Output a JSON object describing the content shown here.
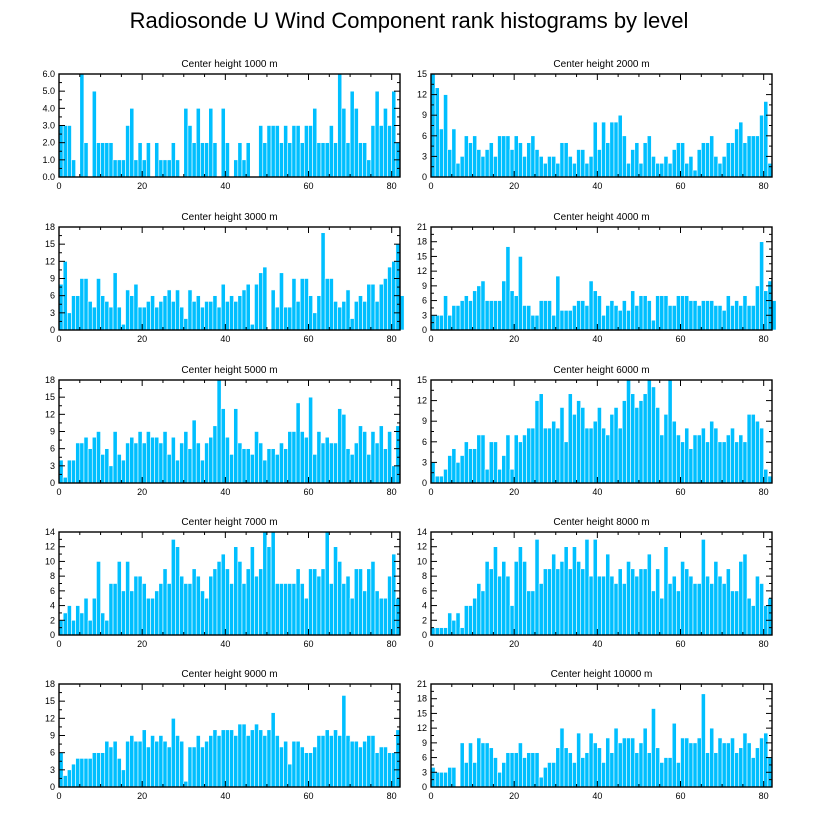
{
  "figure_title": "Radiosonde U Wind Component rank histograms by level",
  "bar_color": "#00BFFF",
  "chart_data": [
    {
      "type": "bar",
      "title": "Center height 1000 m",
      "xlim": [
        0,
        82
      ],
      "ylim": [
        0,
        6
      ],
      "xticks": [
        "0",
        "20",
        "40",
        "60",
        "80"
      ],
      "yticks": [
        "0.0",
        "1.0",
        "2.0",
        "3.0",
        "4.0",
        "5.0",
        "6.0"
      ],
      "values": [
        3,
        3,
        3,
        1,
        0,
        6,
        2,
        0,
        5,
        2,
        2,
        2,
        2,
        1,
        1,
        1,
        3,
        4,
        1,
        2,
        1,
        2,
        0,
        2,
        1,
        1,
        1,
        2,
        1,
        0,
        4,
        3,
        2,
        4,
        2,
        2,
        4,
        2,
        0,
        4,
        2,
        0,
        1,
        2,
        1,
        2,
        0,
        0,
        3,
        2,
        3,
        3,
        3,
        2,
        3,
        2,
        3,
        3,
        2,
        3,
        3,
        4,
        2,
        2,
        2,
        3,
        2,
        6,
        4,
        2,
        5,
        4,
        2,
        2,
        1,
        3,
        5,
        3,
        4,
        3,
        5,
        2
      ]
    },
    {
      "type": "bar",
      "title": "Center height 2000 m",
      "xlim": [
        0,
        82
      ],
      "ylim": [
        0,
        15
      ],
      "xticks": [
        "0",
        "20",
        "40",
        "60",
        "80"
      ],
      "yticks": [
        "0",
        "3",
        "6",
        "9",
        "12",
        "15"
      ],
      "values": [
        15,
        13,
        7,
        12,
        4,
        7,
        2,
        3,
        6,
        5,
        6,
        4,
        3,
        4,
        5,
        3,
        6,
        6,
        6,
        4,
        6,
        5,
        3,
        5,
        6,
        4,
        3,
        2,
        3,
        3,
        2,
        5,
        5,
        3,
        2,
        4,
        4,
        2,
        3,
        8,
        4,
        8,
        5,
        8,
        8,
        9,
        6,
        2,
        4,
        5,
        2,
        5,
        6,
        3,
        2,
        2,
        3,
        2,
        4,
        5,
        5,
        2,
        3,
        1,
        4,
        5,
        5,
        6,
        3,
        2,
        3,
        5,
        5,
        7,
        8,
        5,
        6,
        6,
        6,
        9,
        11,
        2
      ]
    },
    {
      "type": "bar",
      "title": "Center height 3000 m",
      "xlim": [
        0,
        82
      ],
      "ylim": [
        0,
        18
      ],
      "xticks": [
        "0",
        "20",
        "40",
        "60",
        "80"
      ],
      "yticks": [
        "0",
        "3",
        "6",
        "9",
        "12",
        "15",
        "18"
      ],
      "values": [
        8,
        12,
        3,
        6,
        6,
        9,
        9,
        5,
        4,
        9,
        6,
        5,
        4,
        10,
        4,
        1,
        7,
        6,
        8,
        4,
        4,
        5,
        6,
        4,
        5,
        6,
        7,
        5,
        7,
        4,
        2,
        7,
        5,
        6,
        4,
        5,
        5,
        6,
        4,
        8,
        5,
        6,
        5,
        6,
        7,
        8,
        1,
        8,
        10,
        11,
        0,
        7,
        4,
        10,
        4,
        4,
        9,
        5,
        9,
        9,
        6,
        3,
        6,
        17,
        9,
        9,
        5,
        4,
        5,
        7,
        2,
        5,
        6,
        5,
        8,
        8,
        5,
        8,
        9,
        11,
        12,
        15,
        6
      ]
    },
    {
      "type": "bar",
      "title": "Center height 4000 m",
      "xlim": [
        0,
        82
      ],
      "ylim": [
        0,
        21
      ],
      "xticks": [
        "0",
        "20",
        "40",
        "60",
        "80"
      ],
      "yticks": [
        "0",
        "3",
        "6",
        "9",
        "12",
        "15",
        "18",
        "21"
      ],
      "values": [
        3,
        3,
        3,
        7,
        3,
        5,
        5,
        6,
        7,
        6,
        8,
        9,
        10,
        6,
        6,
        6,
        6,
        10,
        17,
        8,
        7,
        15,
        5,
        5,
        3,
        3,
        6,
        6,
        6,
        3,
        11,
        4,
        4,
        4,
        5,
        6,
        6,
        5,
        10,
        8,
        7,
        3,
        5,
        6,
        5,
        4,
        6,
        4,
        8,
        5,
        7,
        7,
        6,
        2,
        7,
        7,
        7,
        5,
        5,
        7,
        7,
        7,
        6,
        6,
        5,
        6,
        6,
        6,
        5,
        5,
        4,
        7,
        5,
        6,
        5,
        7,
        5,
        5,
        9,
        18,
        8,
        10,
        6
      ]
    },
    {
      "type": "bar",
      "title": "Center height 5000 m",
      "xlim": [
        0,
        82
      ],
      "ylim": [
        0,
        18
      ],
      "xticks": [
        "0",
        "20",
        "40",
        "60",
        "80"
      ],
      "yticks": [
        "0",
        "3",
        "6",
        "9",
        "12",
        "15",
        "18"
      ],
      "values": [
        4,
        1,
        4,
        4,
        7,
        7,
        8,
        6,
        8,
        9,
        5,
        6,
        3,
        9,
        5,
        4,
        7,
        8,
        7,
        9,
        7,
        9,
        8,
        8,
        7,
        9,
        5,
        8,
        4,
        7,
        9,
        6,
        11,
        7,
        4,
        7,
        8,
        10,
        18,
        13,
        8,
        5,
        13,
        7,
        6,
        6,
        5,
        9,
        7,
        4,
        6,
        6,
        5,
        7,
        6,
        9,
        9,
        14,
        9,
        8,
        15,
        5,
        9,
        7,
        8,
        7,
        7,
        13,
        12,
        6,
        5,
        7,
        10,
        9,
        5,
        9,
        7,
        10,
        6,
        9,
        3,
        10
      ]
    },
    {
      "type": "bar",
      "title": "Center height 6000 m",
      "xlim": [
        0,
        82
      ],
      "ylim": [
        0,
        15
      ],
      "xticks": [
        "0",
        "20",
        "40",
        "60",
        "80"
      ],
      "yticks": [
        "0",
        "3",
        "6",
        "9",
        "12",
        "15"
      ],
      "values": [
        3,
        1,
        1,
        2,
        4,
        5,
        3,
        4,
        6,
        5,
        5,
        7,
        7,
        2,
        6,
        6,
        2,
        4,
        7,
        2,
        7,
        6,
        7,
        8,
        8,
        12,
        13,
        8,
        8,
        9,
        8,
        11,
        6,
        13,
        10,
        12,
        11,
        8,
        8,
        9,
        11,
        8,
        7,
        10,
        11,
        8,
        12,
        15,
        13,
        11,
        12,
        13,
        15,
        14,
        11,
        7,
        10,
        15,
        9,
        7,
        6,
        8,
        5,
        7,
        7,
        8,
        6,
        9,
        8,
        6,
        6,
        7,
        8,
        6,
        7,
        6,
        10,
        10,
        9,
        8,
        2,
        1
      ]
    },
    {
      "type": "bar",
      "title": "Center height 7000 m",
      "xlim": [
        0,
        82
      ],
      "ylim": [
        0,
        14
      ],
      "xticks": [
        "0",
        "20",
        "40",
        "60",
        "80"
      ],
      "yticks": [
        "0",
        "2",
        "4",
        "6",
        "8",
        "10",
        "12",
        "14"
      ],
      "values": [
        2,
        3,
        4,
        2,
        4,
        3,
        5,
        2,
        5,
        10,
        3,
        2,
        7,
        7,
        10,
        6,
        10,
        6,
        8,
        8,
        7,
        5,
        5,
        6,
        7,
        9,
        7,
        13,
        12,
        8,
        7,
        7,
        9,
        8,
        6,
        5,
        8,
        9,
        10,
        11,
        9,
        7,
        12,
        10,
        7,
        9,
        12,
        8,
        9,
        14,
        12,
        14,
        7,
        7,
        7,
        7,
        7,
        9,
        7,
        5,
        9,
        9,
        8,
        9,
        14,
        7,
        12,
        10,
        7,
        8,
        5,
        9,
        9,
        6,
        9,
        10,
        6,
        5,
        5,
        8,
        11,
        5
      ]
    },
    {
      "type": "bar",
      "title": "Center height 8000 m",
      "xlim": [
        0,
        82
      ],
      "ylim": [
        0,
        14
      ],
      "xticks": [
        "0",
        "20",
        "40",
        "60",
        "80"
      ],
      "yticks": [
        "0",
        "2",
        "4",
        "6",
        "8",
        "10",
        "12",
        "14"
      ],
      "values": [
        1,
        1,
        1,
        1,
        3,
        2,
        3,
        1,
        4,
        4,
        5,
        7,
        6,
        10,
        9,
        12,
        8,
        10,
        8,
        4,
        10,
        12,
        10,
        6,
        6,
        13,
        7,
        9,
        9,
        11,
        9,
        10,
        12,
        9,
        12,
        10,
        9,
        13,
        8,
        13,
        8,
        8,
        11,
        8,
        7,
        9,
        7,
        10,
        9,
        8,
        9,
        9,
        11,
        6,
        9,
        5,
        12,
        7,
        8,
        6,
        10,
        9,
        8,
        7,
        7,
        13,
        8,
        7,
        10,
        8,
        7,
        9,
        6,
        6,
        10,
        11,
        5,
        4,
        8,
        7,
        4,
        5
      ]
    },
    {
      "type": "bar",
      "title": "Center height 9000 m",
      "xlim": [
        0,
        82
      ],
      "ylim": [
        0,
        18
      ],
      "xticks": [
        "0",
        "20",
        "40",
        "60",
        "80"
      ],
      "yticks": [
        "0",
        "3",
        "6",
        "9",
        "12",
        "15",
        "18"
      ],
      "values": [
        6,
        2,
        3,
        4,
        5,
        5,
        5,
        5,
        6,
        6,
        6,
        8,
        7,
        8,
        5,
        3,
        8,
        9,
        8,
        8,
        10,
        7,
        9,
        8,
        9,
        8,
        7,
        12,
        9,
        8,
        1,
        7,
        7,
        9,
        7,
        8,
        9,
        10,
        9,
        10,
        10,
        10,
        9,
        11,
        11,
        9,
        10,
        11,
        10,
        9,
        10,
        13,
        9,
        7,
        8,
        4,
        8,
        8,
        7,
        6,
        6,
        7,
        9,
        9,
        10,
        9,
        10,
        9,
        16,
        9,
        8,
        8,
        7,
        8,
        9,
        9,
        6,
        7,
        7,
        6,
        6,
        10
      ]
    },
    {
      "type": "bar",
      "title": "Center height 10000 m",
      "xlim": [
        0,
        82
      ],
      "ylim": [
        0,
        21
      ],
      "xticks": [
        "0",
        "20",
        "40",
        "60",
        "80"
      ],
      "yticks": [
        "0",
        "3",
        "6",
        "9",
        "12",
        "15",
        "18",
        "21"
      ],
      "values": [
        4,
        3,
        3,
        3,
        4,
        4,
        0,
        9,
        5,
        9,
        5,
        10,
        9,
        9,
        8,
        6,
        3,
        5,
        7,
        7,
        7,
        9,
        6,
        7,
        7,
        7,
        2,
        4,
        5,
        5,
        8,
        12,
        8,
        7,
        5,
        11,
        6,
        7,
        11,
        9,
        8,
        5,
        10,
        7,
        12,
        9,
        10,
        10,
        10,
        7,
        9,
        12,
        7,
        16,
        8,
        5,
        6,
        6,
        13,
        5,
        10,
        10,
        9,
        9,
        10,
        19,
        7,
        12,
        7,
        10,
        9,
        9,
        10,
        7,
        8,
        11,
        9,
        6,
        8,
        10,
        11,
        6
      ]
    }
  ]
}
